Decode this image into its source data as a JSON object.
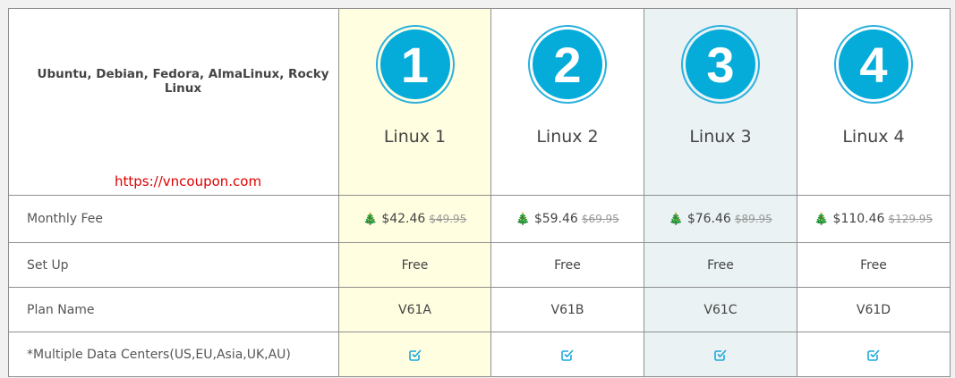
{
  "header": {
    "os_list": "Ubuntu, Debian, Fedora, AlmaLinux, Rocky Linux",
    "url": "https://vncoupon.com"
  },
  "plans": [
    {
      "number": "1",
      "name": "Linux 1",
      "price": "$42.46",
      "old_price": "$49.95",
      "setup": "Free",
      "plan_name": "V61A",
      "multi_dc": true
    },
    {
      "number": "2",
      "name": "Linux 2",
      "price": "$59.46",
      "old_price": "$69.95",
      "setup": "Free",
      "plan_name": "V61B",
      "multi_dc": true
    },
    {
      "number": "3",
      "name": "Linux 3",
      "price": "$76.46",
      "old_price": "$89.95",
      "setup": "Free",
      "plan_name": "V61C",
      "multi_dc": true
    },
    {
      "number": "4",
      "name": "Linux 4",
      "price": "$110.46",
      "old_price": "$129.95",
      "setup": "Free",
      "plan_name": "V61D",
      "multi_dc": true
    }
  ],
  "rows": {
    "monthly_fee": "Monthly Fee",
    "setup": "Set Up",
    "plan_name": "Plan Name",
    "multi_dc": "*Multiple Data Centers(US,EU,Asia,UK,AU)"
  },
  "icons": {
    "price": "christmas-tree-icon",
    "feature": "checkbox-checked-icon"
  },
  "colors": {
    "accent": "#05acd9",
    "highlight_col1": "#fffee0",
    "highlight_col3": "#eaf2f4",
    "url": "#e00000"
  }
}
